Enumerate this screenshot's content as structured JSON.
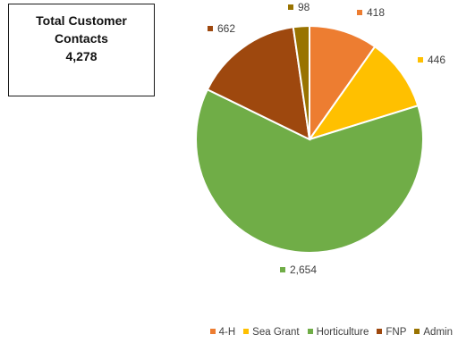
{
  "summary": {
    "line1": "Total Customer",
    "line2": "Contacts",
    "value": "4,278"
  },
  "chart_data": {
    "type": "pie",
    "categories": [
      "4-H",
      "Sea Grant",
      "Horticulture",
      "FNP",
      "Admin"
    ],
    "values": [
      418,
      446,
      2654,
      662,
      98
    ],
    "labels": [
      "418",
      "446",
      "2,654",
      "662",
      "98"
    ],
    "colors": [
      "#ED7D31",
      "#FFC000",
      "#70AD47",
      "#9E480E",
      "#997300"
    ],
    "legend_position": "bottom-right",
    "start_angle_deg": 0,
    "direction": "clockwise"
  }
}
